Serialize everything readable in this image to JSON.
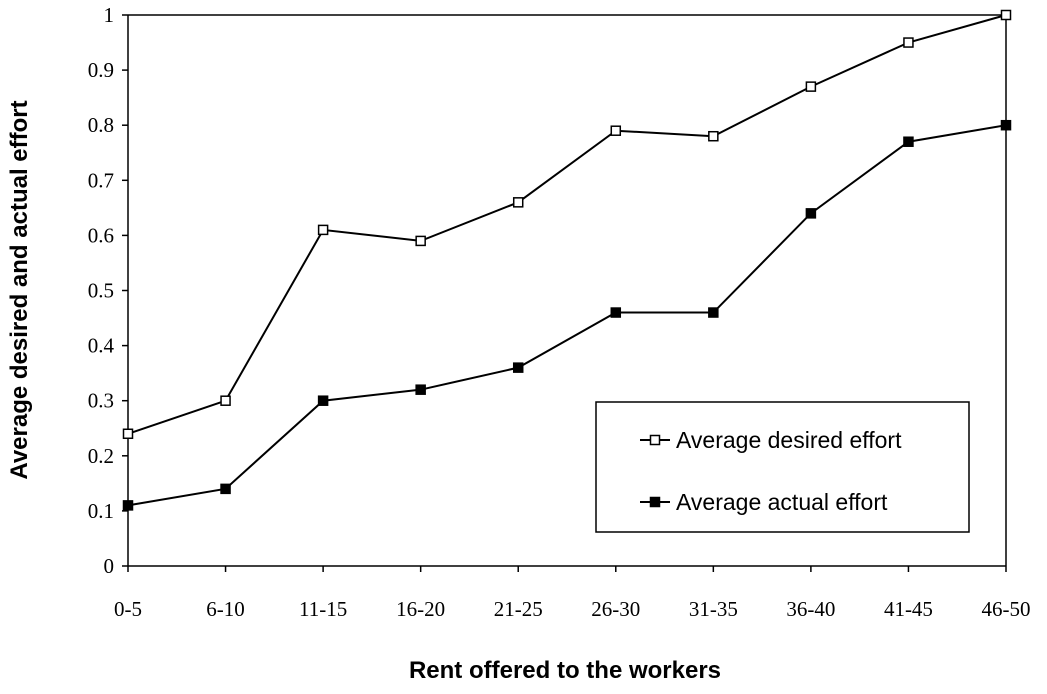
{
  "chart_data": {
    "type": "line",
    "title": "",
    "xlabel": "Rent offered to the workers",
    "ylabel": "Average desired and actual effort",
    "categories": [
      "0-5",
      "6-10",
      "11-15",
      "16-20",
      "21-25",
      "26-30",
      "31-35",
      "36-40",
      "41-45",
      "46-50"
    ],
    "ylim": [
      0,
      1
    ],
    "yticks": [
      "0",
      "0.1",
      "0.2",
      "0.3",
      "0.4",
      "0.5",
      "0.6",
      "0.7",
      "0.8",
      "0.9",
      "1"
    ],
    "grid": false,
    "legend_position": "lower-right",
    "series": [
      {
        "name": "Average desired effort",
        "marker": "hollow-square",
        "color": "#000000",
        "values": [
          0.24,
          0.3,
          0.61,
          0.59,
          0.66,
          0.79,
          0.78,
          0.87,
          0.95,
          1.0
        ]
      },
      {
        "name": "Average actual effort",
        "marker": "filled-square",
        "color": "#000000",
        "values": [
          0.11,
          0.14,
          0.3,
          0.32,
          0.36,
          0.46,
          0.46,
          0.64,
          0.77,
          0.8
        ]
      }
    ]
  }
}
